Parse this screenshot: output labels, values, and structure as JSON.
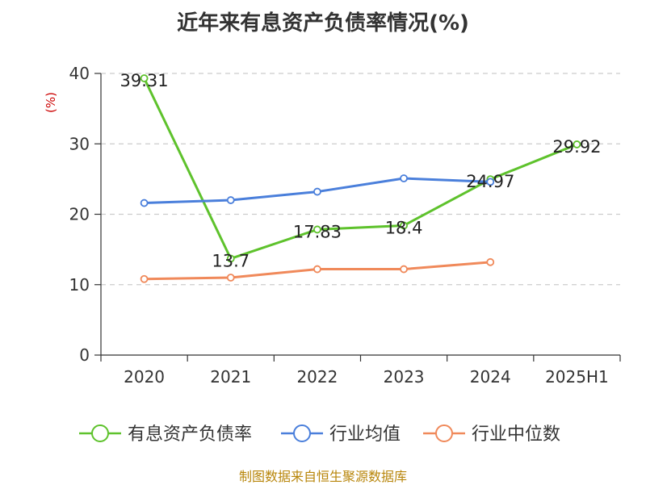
{
  "title": "近年来有息资产负债率情况(%)",
  "source": "制图数据来自恒生聚源数据库",
  "colors": {
    "series_1": "#5ec22c",
    "series_2": "#4a7fdb",
    "series_3": "#f0895a",
    "grid": "#cccccc",
    "axis": "#333333",
    "ylabel": "#cc0000",
    "source": "#b8860b"
  },
  "chart_data": {
    "type": "line",
    "title": "近年来有息资产负债率情况(%)",
    "xlabel": "",
    "ylabel": "(%)",
    "categories": [
      "2020",
      "2021",
      "2022",
      "2023",
      "2024",
      "2025H1"
    ],
    "ylim": [
      0,
      40
    ],
    "yticks": [
      0,
      10,
      20,
      30,
      40
    ],
    "grid": true,
    "legend_position": "bottom",
    "series": [
      {
        "name": "有息资产负债率",
        "values": [
          39.31,
          13.7,
          17.83,
          18.4,
          24.97,
          29.92
        ],
        "labels": [
          "39.31",
          "13.7",
          "17.83",
          "18.4",
          "24.97",
          "29.92"
        ]
      },
      {
        "name": "行业均值",
        "values": [
          21.6,
          22.0,
          23.2,
          25.1,
          24.6,
          null
        ]
      },
      {
        "name": "行业中位数",
        "values": [
          10.8,
          11.0,
          12.2,
          12.2,
          13.2,
          null
        ]
      }
    ]
  }
}
